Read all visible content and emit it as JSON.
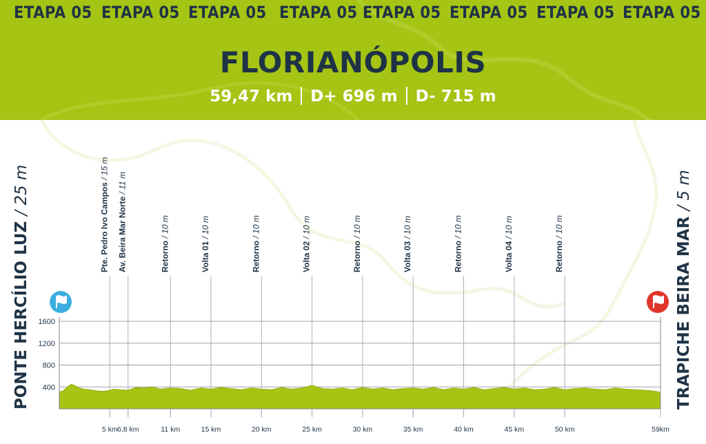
{
  "header": {
    "stage_repeats": [
      "ETAPA 05",
      "ETAPA 05",
      "ETAPA 05",
      "ETAPA 05",
      "ETAPA 05",
      "ETAPA 05",
      "ETAPA 05",
      "ETAPA 05"
    ],
    "city": "FLORIANÓPOLIS",
    "distance": "59,47 km",
    "gain": "D+ 696 m",
    "loss": "D- 715 m"
  },
  "start": {
    "name": "PONTE HERCÍLIO LUZ",
    "elevation": "/ 25 m"
  },
  "finish": {
    "name": "TRAPICHE BEIRA MAR",
    "elevation": "/ 5 m"
  },
  "colors": {
    "header": "#a5c414",
    "text_dark": "#1f3346",
    "fill": "#a5c414",
    "start_flag": "#3daee0",
    "finish_flag": "#e0352b"
  },
  "chart_data": {
    "type": "area",
    "ylim": [
      0,
      1600
    ],
    "yticks": [
      400,
      800,
      1200,
      1600
    ],
    "xlim": [
      0,
      59.47
    ],
    "x_ticks": [
      {
        "value": 5,
        "label": "5 km"
      },
      {
        "value": 6.8,
        "label": "6,8 km"
      },
      {
        "value": 11,
        "label": "11 km"
      },
      {
        "value": 15,
        "label": "15 km"
      },
      {
        "value": 20,
        "label": "20 km"
      },
      {
        "value": 25,
        "label": "25 km"
      },
      {
        "value": 30,
        "label": "30 km"
      },
      {
        "value": 35,
        "label": "35 km"
      },
      {
        "value": 40,
        "label": "40 km"
      },
      {
        "value": 45,
        "label": "45 km"
      },
      {
        "value": 50,
        "label": "50 km"
      },
      {
        "value": 59.47,
        "label": "59km"
      }
    ],
    "waypoints": [
      {
        "km": 5,
        "name": "Pte. Pedro Ivo Campos",
        "elevation": "/ 15 m"
      },
      {
        "km": 6.8,
        "name": "Av. Beira Mar Norte",
        "elevation": "/ 11 m"
      },
      {
        "km": 11,
        "name": "Retorno",
        "elevation": "/ 10 m"
      },
      {
        "km": 15,
        "name": "Volta 01",
        "elevation": "/ 10 m"
      },
      {
        "km": 20,
        "name": "Retorno",
        "elevation": "/ 10 m"
      },
      {
        "km": 25,
        "name": "Volta 02",
        "elevation": "/ 10 m"
      },
      {
        "km": 30,
        "name": "Retorno",
        "elevation": "/ 10 m"
      },
      {
        "km": 35,
        "name": "Volta 03",
        "elevation": "/ 10 m"
      },
      {
        "km": 40,
        "name": "Retorno",
        "elevation": "/ 10 m"
      },
      {
        "km": 45,
        "name": "Volta 04",
        "elevation": "/ 10 m"
      },
      {
        "km": 50,
        "name": "Retorno",
        "elevation": "/ 10 m"
      }
    ],
    "profile": {
      "x": [
        0,
        0.4,
        0.8,
        1.2,
        1.6,
        2.0,
        2.4,
        3.0,
        3.6,
        4.2,
        4.8,
        5.4,
        6.0,
        6.8,
        7.6,
        8.4,
        9.2,
        10.0,
        11.0,
        12.0,
        13.0,
        14.0,
        15.0,
        16.0,
        17.0,
        18.0,
        19.0,
        20.0,
        21.0,
        22.0,
        23.0,
        24.0,
        25.0,
        26.0,
        27.0,
        28.0,
        29.0,
        30.0,
        31.0,
        32.0,
        33.0,
        34.0,
        35.0,
        36.0,
        37.0,
        38.0,
        39.0,
        40.0,
        41.0,
        42.0,
        43.0,
        44.0,
        45.0,
        46.0,
        47.0,
        48.0,
        49.0,
        50.0,
        51.0,
        52.0,
        53.0,
        54.0,
        55.0,
        56.0,
        57.0,
        58.0,
        59.0,
        59.47
      ],
      "y": [
        310,
        330,
        400,
        450,
        420,
        380,
        360,
        350,
        330,
        320,
        330,
        360,
        350,
        340,
        390,
        380,
        400,
        360,
        380,
        370,
        340,
        380,
        360,
        390,
        370,
        350,
        380,
        360,
        350,
        390,
        360,
        380,
        430,
        370,
        360,
        380,
        350,
        390,
        360,
        380,
        350,
        370,
        380,
        360,
        390,
        350,
        380,
        360,
        390,
        350,
        370,
        390,
        360,
        380,
        350,
        360,
        390,
        350,
        370,
        380,
        360,
        350,
        380,
        360,
        350,
        340,
        320,
        300
      ]
    }
  }
}
